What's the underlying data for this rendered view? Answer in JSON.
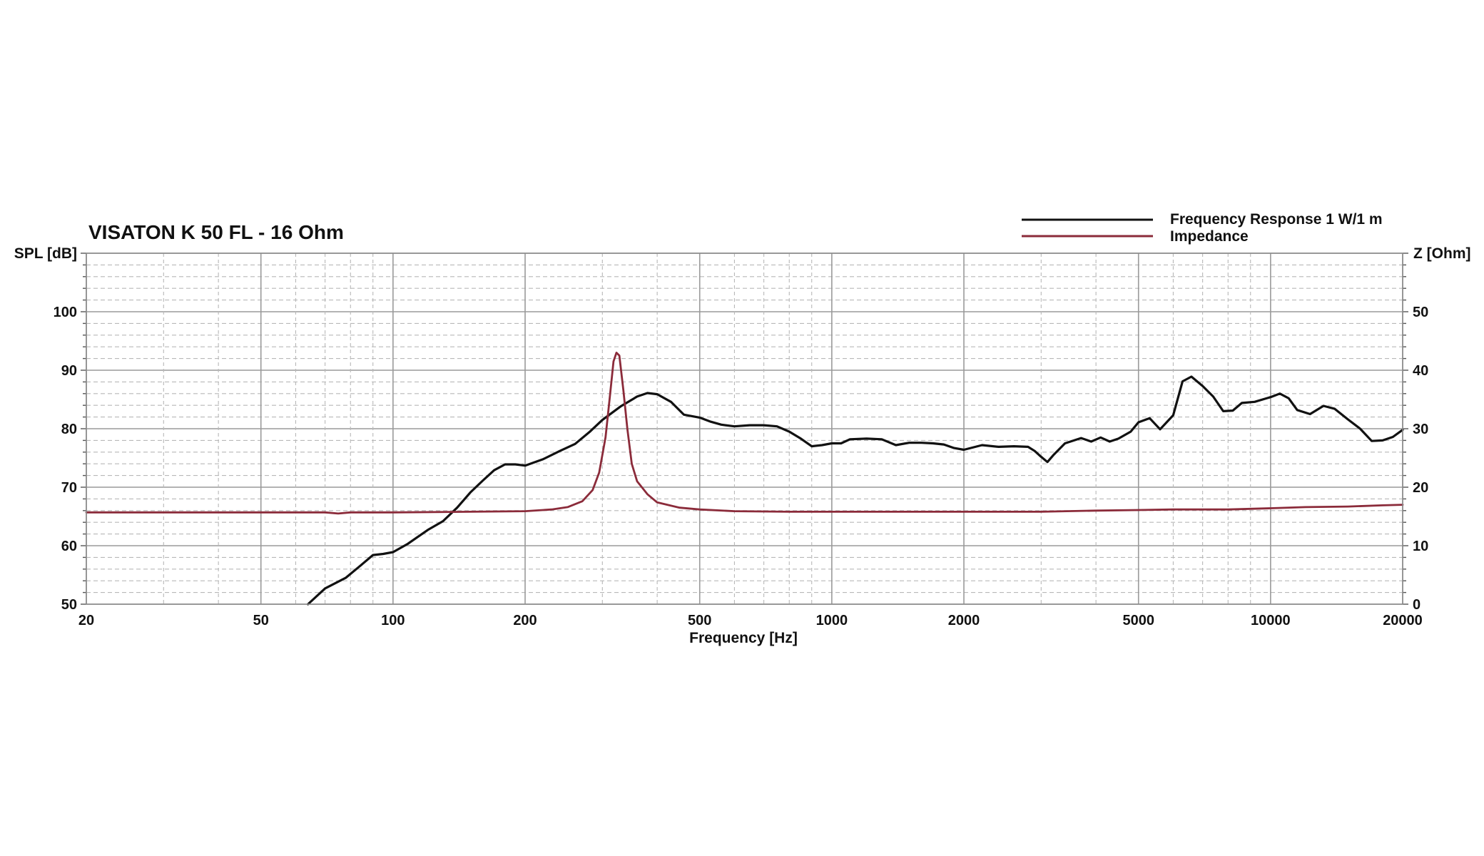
{
  "chart_data": {
    "type": "line",
    "title": "VISATON K 50 FL - 16 Ohm",
    "xlabel": "Frequency [Hz]",
    "ylabel": "SPL [dB]",
    "y2label": "Z [Ohm]",
    "xscale": "log",
    "xlim": [
      20,
      20000
    ],
    "ylim": [
      50,
      110
    ],
    "y2lim": [
      0,
      60
    ],
    "grid": true,
    "legend_position": "top-right",
    "x_ticks": [
      20,
      50,
      100,
      200,
      500,
      1000,
      2000,
      5000,
      10000,
      20000
    ],
    "y_ticks": [
      50,
      60,
      70,
      80,
      90,
      100
    ],
    "y2_ticks": [
      0,
      10,
      20,
      30,
      40,
      50
    ],
    "series": [
      {
        "name": "Frequency Response 1 W/1 m",
        "axis": "left",
        "color": "#111111",
        "points": [
          [
            64,
            50.0
          ],
          [
            70,
            52.7
          ],
          [
            78,
            54.5
          ],
          [
            84,
            56.5
          ],
          [
            90,
            58.4
          ],
          [
            95,
            58.6
          ],
          [
            100,
            58.9
          ],
          [
            108,
            60.3
          ],
          [
            120,
            62.7
          ],
          [
            130,
            64.2
          ],
          [
            140,
            66.5
          ],
          [
            150,
            69.1
          ],
          [
            160,
            71.1
          ],
          [
            170,
            72.9
          ],
          [
            180,
            73.9
          ],
          [
            190,
            73.9
          ],
          [
            200,
            73.7
          ],
          [
            220,
            74.8
          ],
          [
            240,
            76.2
          ],
          [
            260,
            77.4
          ],
          [
            280,
            79.4
          ],
          [
            300,
            81.5
          ],
          [
            330,
            83.8
          ],
          [
            360,
            85.5
          ],
          [
            380,
            86.1
          ],
          [
            400,
            85.9
          ],
          [
            430,
            84.6
          ],
          [
            460,
            82.4
          ],
          [
            500,
            81.9
          ],
          [
            530,
            81.2
          ],
          [
            560,
            80.7
          ],
          [
            600,
            80.4
          ],
          [
            650,
            80.6
          ],
          [
            700,
            80.6
          ],
          [
            750,
            80.4
          ],
          [
            800,
            79.5
          ],
          [
            850,
            78.3
          ],
          [
            900,
            77.0
          ],
          [
            950,
            77.2
          ],
          [
            1000,
            77.5
          ],
          [
            1050,
            77.5
          ],
          [
            1100,
            78.2
          ],
          [
            1200,
            78.3
          ],
          [
            1300,
            78.2
          ],
          [
            1400,
            77.2
          ],
          [
            1500,
            77.6
          ],
          [
            1600,
            77.6
          ],
          [
            1700,
            77.5
          ],
          [
            1800,
            77.3
          ],
          [
            1900,
            76.7
          ],
          [
            2000,
            76.4
          ],
          [
            2200,
            77.2
          ],
          [
            2400,
            76.9
          ],
          [
            2600,
            77.0
          ],
          [
            2800,
            76.9
          ],
          [
            2900,
            76.2
          ],
          [
            3000,
            75.2
          ],
          [
            3100,
            74.3
          ],
          [
            3200,
            75.5
          ],
          [
            3400,
            77.5
          ],
          [
            3700,
            78.4
          ],
          [
            3900,
            77.8
          ],
          [
            4100,
            78.5
          ],
          [
            4300,
            77.8
          ],
          [
            4500,
            78.3
          ],
          [
            4800,
            79.5
          ],
          [
            5000,
            81.1
          ],
          [
            5300,
            81.8
          ],
          [
            5600,
            79.9
          ],
          [
            6000,
            82.3
          ],
          [
            6300,
            88.1
          ],
          [
            6600,
            88.9
          ],
          [
            7000,
            87.3
          ],
          [
            7400,
            85.5
          ],
          [
            7800,
            83.0
          ],
          [
            8200,
            83.1
          ],
          [
            8600,
            84.4
          ],
          [
            9200,
            84.6
          ],
          [
            10000,
            85.4
          ],
          [
            10500,
            86.0
          ],
          [
            11000,
            85.2
          ],
          [
            11500,
            83.2
          ],
          [
            12300,
            82.5
          ],
          [
            13200,
            83.9
          ],
          [
            14000,
            83.4
          ],
          [
            15000,
            81.6
          ],
          [
            16000,
            80.0
          ],
          [
            17000,
            77.9
          ],
          [
            18000,
            78.0
          ],
          [
            19000,
            78.6
          ],
          [
            20000,
            79.8
          ]
        ]
      },
      {
        "name": "Impedance",
        "axis": "right",
        "color": "#8b2b3a",
        "points": [
          [
            20,
            15.7
          ],
          [
            30,
            15.7
          ],
          [
            40,
            15.7
          ],
          [
            60,
            15.7
          ],
          [
            70,
            15.7
          ],
          [
            75,
            15.5
          ],
          [
            80,
            15.7
          ],
          [
            100,
            15.7
          ],
          [
            150,
            15.8
          ],
          [
            200,
            15.9
          ],
          [
            230,
            16.2
          ],
          [
            250,
            16.6
          ],
          [
            270,
            17.6
          ],
          [
            285,
            19.5
          ],
          [
            295,
            22.5
          ],
          [
            305,
            28.5
          ],
          [
            312,
            35.5
          ],
          [
            318,
            41.5
          ],
          [
            323,
            43.0
          ],
          [
            328,
            42.5
          ],
          [
            335,
            36.5
          ],
          [
            342,
            30.0
          ],
          [
            350,
            24.0
          ],
          [
            360,
            21.0
          ],
          [
            380,
            18.8
          ],
          [
            400,
            17.4
          ],
          [
            450,
            16.5
          ],
          [
            500,
            16.2
          ],
          [
            600,
            15.9
          ],
          [
            800,
            15.8
          ],
          [
            1000,
            15.8
          ],
          [
            1500,
            15.8
          ],
          [
            2000,
            15.8
          ],
          [
            3000,
            15.8
          ],
          [
            4000,
            16.0
          ],
          [
            5000,
            16.1
          ],
          [
            6000,
            16.2
          ],
          [
            7000,
            16.2
          ],
          [
            8000,
            16.2
          ],
          [
            10000,
            16.4
          ],
          [
            12000,
            16.6
          ],
          [
            15000,
            16.7
          ],
          [
            18000,
            16.9
          ],
          [
            20000,
            17.0
          ]
        ]
      }
    ]
  }
}
